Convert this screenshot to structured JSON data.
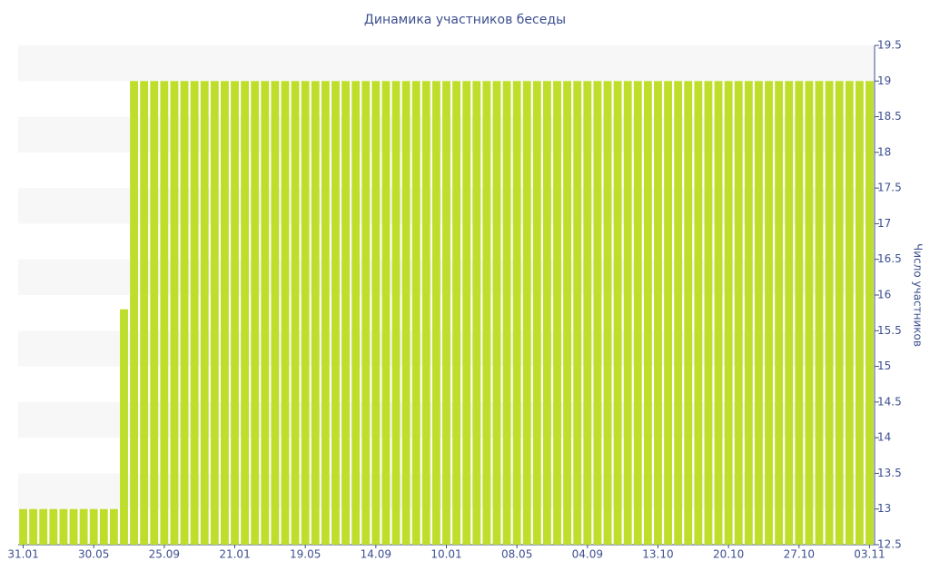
{
  "chart_data": {
    "type": "bar",
    "title": "Динамика участников беседы",
    "y_axis_label": "Число участников",
    "categories": [
      "31.01",
      null,
      null,
      null,
      null,
      null,
      null,
      "30.05",
      null,
      null,
      null,
      null,
      null,
      null,
      "25.09",
      null,
      null,
      null,
      null,
      null,
      null,
      "21.01",
      null,
      null,
      null,
      null,
      null,
      null,
      "19.05",
      null,
      null,
      null,
      null,
      null,
      null,
      "14.09",
      null,
      null,
      null,
      null,
      null,
      null,
      "10.01",
      null,
      null,
      null,
      null,
      null,
      null,
      "08.05",
      null,
      null,
      null,
      null,
      null,
      null,
      "04.09",
      null,
      null,
      null,
      null,
      null,
      null,
      "13.10",
      null,
      null,
      null,
      null,
      null,
      null,
      "20.10",
      null,
      null,
      null,
      null,
      null,
      null,
      "27.10",
      null,
      null,
      null,
      null,
      null,
      null,
      "03.11"
    ],
    "values": [
      13,
      13,
      13,
      13,
      13,
      13,
      13,
      13,
      13,
      13,
      15.8,
      19,
      19,
      19,
      19,
      19,
      19,
      19,
      19,
      19,
      19,
      19,
      19,
      19,
      19,
      19,
      19,
      19,
      19,
      19,
      19,
      19,
      19,
      19,
      19,
      19,
      19,
      19,
      19,
      19,
      19,
      19,
      19,
      19,
      19,
      19,
      19,
      19,
      19,
      19,
      19,
      19,
      19,
      19,
      19,
      19,
      19,
      19,
      19,
      19,
      19,
      19,
      19,
      19,
      19,
      19,
      19,
      19,
      19,
      19,
      19,
      19,
      19,
      19,
      19,
      19,
      19,
      19,
      19,
      19,
      19,
      19,
      19,
      19,
      19
    ],
    "color": "#bfde2c",
    "ylim": [
      12.5,
      19.5
    ],
    "yticks": [
      12.5,
      13,
      13.5,
      14,
      14.5,
      15,
      15.5,
      16,
      16.5,
      17,
      17.5,
      18,
      18.5,
      19,
      19.5
    ],
    "y_axis_side": "right"
  }
}
